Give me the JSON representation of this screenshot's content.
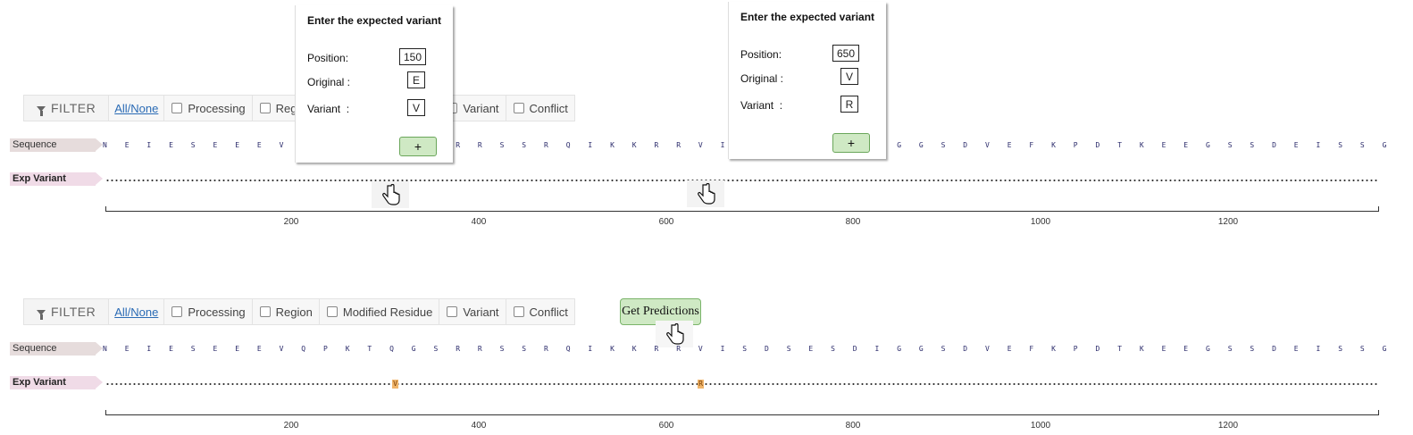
{
  "filter": {
    "label": "FILTER",
    "all_none": "All/None",
    "categories": [
      "Processing",
      "Region",
      "Modified Residue",
      "Variant",
      "Conflict"
    ]
  },
  "tracks": {
    "sequence_label": "Sequence",
    "variant_label": "Exp Variant"
  },
  "sequence": [
    "N",
    "E",
    "I",
    "E",
    "S",
    "E",
    "E",
    "E",
    "V",
    "Q",
    "P",
    "K",
    "T",
    "Q",
    "G",
    "S",
    "R",
    "R",
    "S",
    "S",
    "R",
    "Q",
    "I",
    "K",
    "K",
    "R",
    "R",
    "V",
    "I",
    "S",
    "D",
    "S",
    "E",
    "S",
    "D",
    "I",
    "G",
    "G",
    "S",
    "D",
    "V",
    "E",
    "F",
    "K",
    "P",
    "D",
    "T",
    "K",
    "E",
    "E",
    "G",
    "S",
    "S",
    "D",
    "E",
    "I",
    "S",
    "S",
    "G"
  ],
  "axis": {
    "ticks": [
      "200",
      "400",
      "600",
      "800",
      "1000",
      "1200"
    ]
  },
  "popups": [
    {
      "title": "Enter the expected variant",
      "position_label": "Position:",
      "position_value": "150",
      "original_label": "Original :",
      "original_value": "E",
      "variant_label": "Variant  :",
      "variant_value": "V",
      "add_label": "+"
    },
    {
      "title": "Enter the expected variant",
      "position_label": "Position:",
      "position_value": "650",
      "original_label": "Original :",
      "original_value": "V",
      "variant_label": "Variant  :",
      "variant_value": "R",
      "add_label": "+"
    }
  ],
  "get_predictions": "Get Predictions",
  "variant_markers": [
    {
      "residue": "V"
    },
    {
      "residue": "R"
    }
  ],
  "colors": {
    "button_green": "#cfe9c4",
    "variant_highlight": "#f0b56b",
    "link_blue": "#2a6bb5"
  }
}
